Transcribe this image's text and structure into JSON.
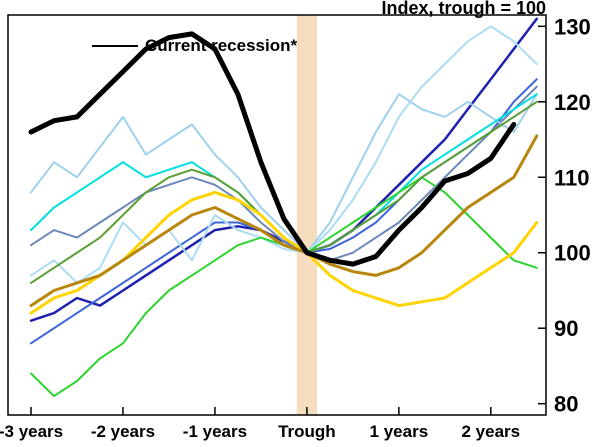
{
  "chart_data": {
    "type": "line",
    "title": "Index, trough = 100",
    "legend": [
      {
        "label": "Current recession*",
        "color": "#000000"
      }
    ],
    "x_start": -3,
    "x_step": 0.25,
    "xlim": [
      -3.25,
      2.6
    ],
    "ylim": [
      80,
      130
    ],
    "y_ticks": [
      80,
      90,
      100,
      110,
      120,
      130
    ],
    "x_tick_values": [
      -3,
      -2,
      -1,
      0,
      1,
      2
    ],
    "x_tick_labels": [
      "-3 years",
      "-2 years",
      "-1 years",
      "Trough",
      "1 years",
      "2 years"
    ],
    "trough_band": {
      "center": 0,
      "half_width": 0.11,
      "color": "#f6ddbd"
    },
    "series": [
      {
        "name": "line-navy",
        "color": "#2020b0",
        "width": 2.5,
        "values": [
          91,
          92,
          94,
          93,
          95,
          97,
          99,
          101,
          103,
          103.5,
          103,
          101.5,
          100,
          101,
          103,
          106,
          109,
          112,
          115,
          119,
          123,
          127,
          131
        ]
      },
      {
        "name": "line-royal-blue",
        "color": "#3a64d8",
        "width": 2,
        "values": [
          88,
          90,
          92,
          94,
          96,
          98,
          100,
          102,
          104,
          104,
          103,
          101,
          100,
          100.5,
          102,
          104,
          107,
          110,
          112,
          114,
          116,
          120,
          123
        ]
      },
      {
        "name": "line-slate-blue",
        "color": "#6d87b8",
        "width": 2,
        "values": [
          101,
          103,
          102,
          104,
          106,
          108,
          109,
          110,
          109,
          107,
          104,
          101.5,
          100,
          99,
          100,
          102,
          104,
          107,
          110,
          113,
          116,
          119,
          122
        ]
      },
      {
        "name": "line-sky-blue",
        "color": "#9fd0ee",
        "width": 2,
        "values": [
          108,
          112,
          110,
          114,
          118,
          113,
          115,
          117,
          113,
          110,
          106,
          103,
          100,
          104,
          110,
          116,
          121,
          119,
          118,
          120,
          118,
          116,
          121
        ]
      },
      {
        "name": "line-pale-blue",
        "color": "#abdcf2",
        "width": 2,
        "values": [
          97,
          99,
          96,
          98,
          104,
          101,
          103,
          99,
          105,
          103,
          102,
          100.5,
          100,
          103,
          107,
          112,
          118,
          122,
          125,
          128,
          130,
          128,
          125
        ]
      },
      {
        "name": "line-cyan",
        "color": "#00e0e0",
        "width": 2,
        "values": [
          103,
          106,
          108,
          110,
          112,
          110,
          111,
          112,
          110,
          108,
          105,
          102,
          100,
          101,
          103,
          105,
          108,
          111,
          113,
          115,
          117,
          119,
          121
        ]
      },
      {
        "name": "line-green",
        "color": "#2ed32e",
        "width": 2,
        "values": [
          84,
          81,
          83,
          86,
          88,
          92,
          95,
          97,
          99,
          101,
          102,
          101,
          100,
          102,
          104,
          106,
          108,
          110,
          108,
          105,
          102,
          99,
          98
        ]
      },
      {
        "name": "line-olive-green",
        "color": "#5a9e32",
        "width": 2,
        "values": [
          96,
          98,
          100,
          102,
          105,
          108,
          110,
          111,
          110,
          108,
          105,
          102,
          100,
          101,
          103,
          105,
          107,
          110,
          112,
          114,
          116,
          118,
          120
        ]
      },
      {
        "name": "line-gold",
        "color": "#ffd400",
        "width": 3,
        "values": [
          92,
          94,
          95,
          97,
          99,
          102,
          105,
          107,
          108,
          107,
          105,
          102,
          100,
          97,
          95,
          94,
          93,
          93.5,
          94,
          96,
          98,
          100,
          104
        ]
      },
      {
        "name": "line-brown",
        "color": "#b8860b",
        "width": 3,
        "values": [
          93,
          95,
          96,
          97,
          99,
          101,
          103,
          105,
          106,
          104.5,
          103,
          101,
          100,
          98.5,
          97.5,
          97,
          98,
          100,
          103,
          106,
          108,
          110,
          115.5
        ]
      },
      {
        "name": "current-recession",
        "color": "#000000",
        "width": 5,
        "values": [
          116,
          117.5,
          118,
          121,
          124,
          127,
          128.5,
          129,
          127,
          121,
          112,
          104.5,
          100,
          99,
          98.5,
          99.5,
          103,
          106,
          109.5,
          110.5,
          112.5,
          117,
          null
        ]
      }
    ]
  }
}
